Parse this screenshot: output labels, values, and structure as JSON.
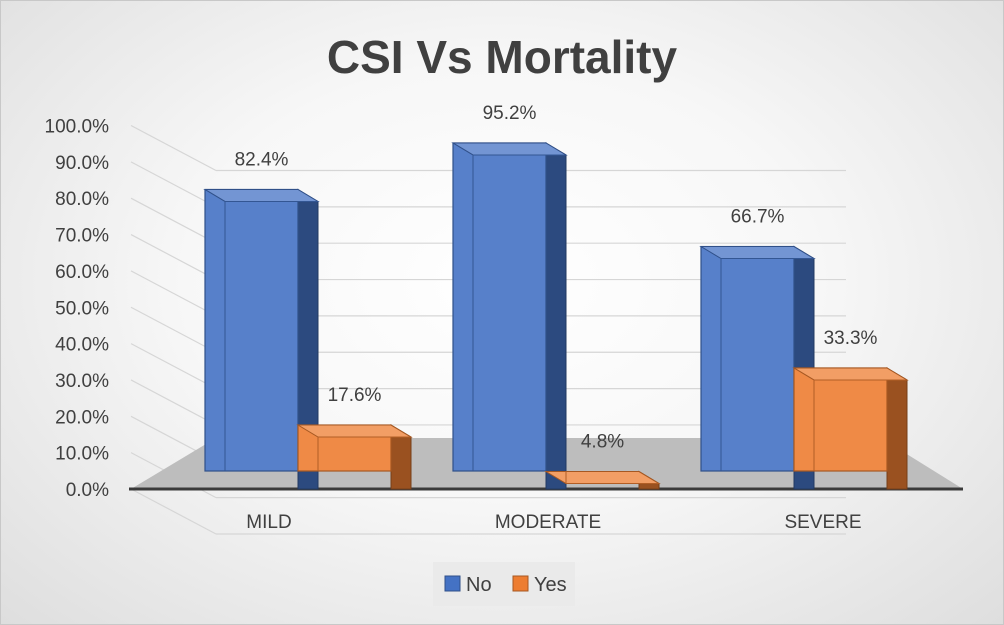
{
  "chart_data": {
    "type": "bar",
    "title": "CSI Vs Mortality",
    "categories": [
      "MILD",
      "MODERATE",
      "SEVERE"
    ],
    "series": [
      {
        "name": "No",
        "values": [
          82.4,
          95.2,
          66.7
        ],
        "labels": [
          "82.4%",
          "95.2%",
          "66.7%"
        ],
        "color": "#4472C4"
      },
      {
        "name": "Yes",
        "values": [
          17.6,
          4.8,
          33.3
        ],
        "labels": [
          "17.6%",
          "4.8%",
          "33.3%"
        ],
        "color": "#ED7D31"
      }
    ],
    "y_ticks": [
      "0.0%",
      "10.0%",
      "20.0%",
      "30.0%",
      "40.0%",
      "50.0%",
      "60.0%",
      "70.0%",
      "80.0%",
      "90.0%",
      "100.0%"
    ],
    "ylim": [
      0,
      100
    ],
    "grid": true,
    "style": "3d-clustered-column",
    "legend_position": "bottom"
  }
}
